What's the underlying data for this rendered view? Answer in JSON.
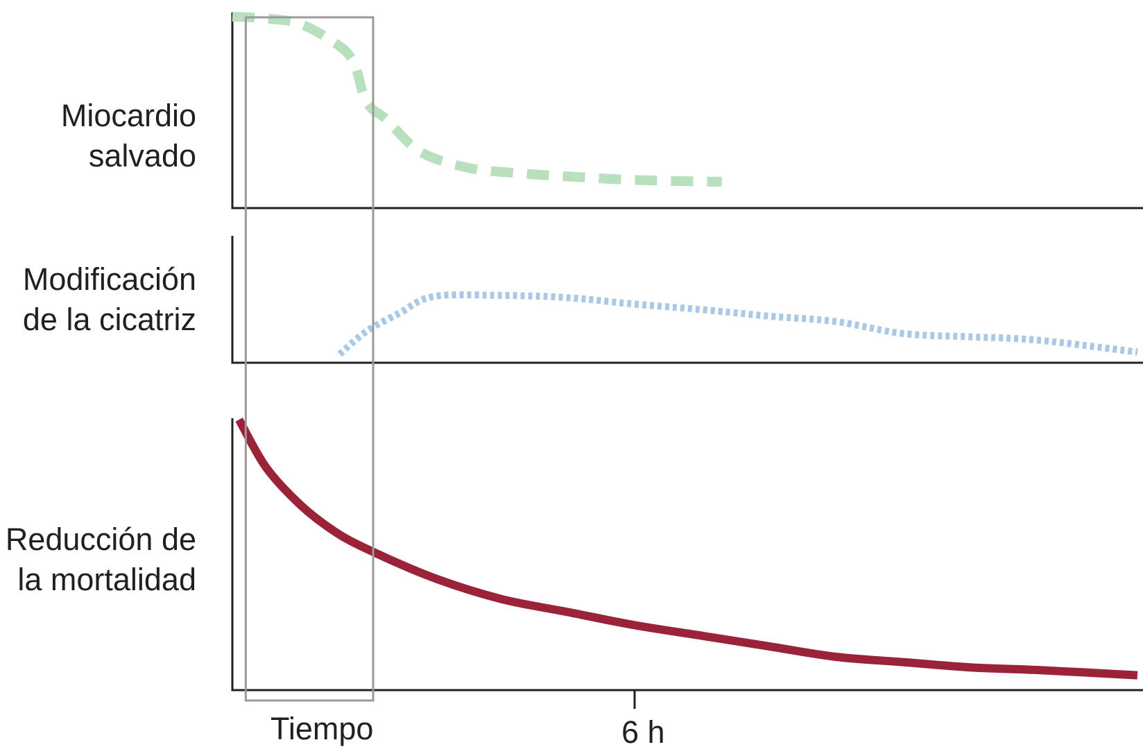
{
  "chart_data": {
    "type": "line",
    "xlabel": "Tiempo",
    "x_ticks": [
      {
        "value": 6,
        "label": "6 h"
      }
    ],
    "xlim": [
      0,
      13.5
    ],
    "highlight_window": [
      0.2,
      2.1
    ],
    "colors": {
      "axis": "#231f20",
      "window": "#9a9a9a",
      "myocardium": "#b9e0bc",
      "scar": "#a9c9e6",
      "mortality": "#9b2339"
    },
    "panels": [
      {
        "label_lines": [
          "Miocardio",
          "salvado"
        ],
        "ylim": [
          0,
          100
        ],
        "line_style": "dashed",
        "color": "#b9e0bc",
        "x": [
          0,
          0.5,
          1.0,
          1.5,
          1.8,
          2.0,
          2.3,
          2.8,
          3.5,
          4.2,
          5.0,
          6.0,
          7.3
        ],
        "y": [
          100,
          99,
          96,
          86,
          75,
          52,
          42,
          24,
          15,
          12,
          10,
          8,
          7
        ]
      },
      {
        "label_lines": [
          "Modificación",
          "de la cicatriz"
        ],
        "ylim": [
          0,
          100
        ],
        "line_style": "dotted",
        "color": "#a9c9e6",
        "x": [
          1.6,
          2.0,
          2.5,
          3.0,
          4.0,
          5.0,
          6.0,
          7.0,
          8.0,
          9.0,
          10.0,
          11.0,
          12.0,
          13.5
        ],
        "y": [
          4,
          25,
          42,
          57,
          58,
          56,
          50,
          45,
          39,
          34,
          23,
          20,
          17,
          6
        ]
      },
      {
        "label_lines": [
          "Reducción de",
          "la mortalidad"
        ],
        "ylim": [
          0,
          100
        ],
        "line_style": "solid",
        "color": "#9b2339",
        "x": [
          0.1,
          0.5,
          1.0,
          1.5,
          2.0,
          3.0,
          4.0,
          5.0,
          6.0,
          7.0,
          8.0,
          9.0,
          10.0,
          11.0,
          12.0,
          13.5
        ],
        "y": [
          100,
          82,
          68,
          58,
          51,
          40,
          32,
          27,
          22,
          18,
          14,
          10,
          8,
          6,
          5,
          3
        ]
      }
    ]
  }
}
